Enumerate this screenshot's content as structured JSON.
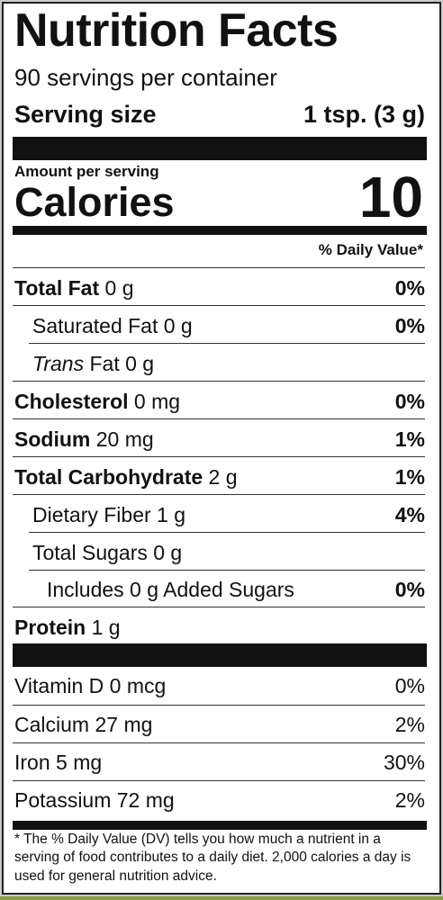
{
  "title": "Nutrition Facts",
  "servings": "90 servings per container",
  "serving_size": {
    "label": "Serving size",
    "value": "1 tsp. (3 g)"
  },
  "amount_per_serving": "Amount per serving",
  "calories": {
    "label": "Calories",
    "value": "10"
  },
  "daily_value_header": "% Daily Value*",
  "nutrients": [
    {
      "name": "Total Fat",
      "amount": "0 g",
      "dv": "0%"
    },
    {
      "name": "Saturated Fat",
      "amount": "0 g",
      "dv": "0%"
    },
    {
      "name_italic": "Trans",
      "name": "Fat",
      "amount": "0 g",
      "dv": ""
    },
    {
      "name": "Cholesterol",
      "amount": "0 mg",
      "dv": "0%"
    },
    {
      "name": "Sodium",
      "amount": "20 mg",
      "dv": "1%"
    },
    {
      "name": "Total Carbohydrate",
      "amount": "2 g",
      "dv": "1%"
    },
    {
      "name": "Dietary Fiber",
      "amount": "1 g",
      "dv": "4%"
    },
    {
      "name": "Total Sugars",
      "amount": "0 g",
      "dv": ""
    },
    {
      "name": "Includes 0 g Added Sugars",
      "amount": "",
      "dv": "0%"
    },
    {
      "name": "Protein",
      "amount": "1 g",
      "dv": ""
    }
  ],
  "vitamins": [
    {
      "name": "Vitamin D",
      "amount": "0 mcg",
      "dv": "0%"
    },
    {
      "name": "Calcium",
      "amount": "27 mg",
      "dv": "2%"
    },
    {
      "name": "Iron",
      "amount": "5 mg",
      "dv": "30%"
    },
    {
      "name": "Potassium",
      "amount": "72 mg",
      "dv": "2%"
    }
  ],
  "footnote": "* The % Daily Value (DV) tells you how much a nutrient in a serving of food contributes to a daily diet. 2,000 calories a day is used for general nutrition advice."
}
